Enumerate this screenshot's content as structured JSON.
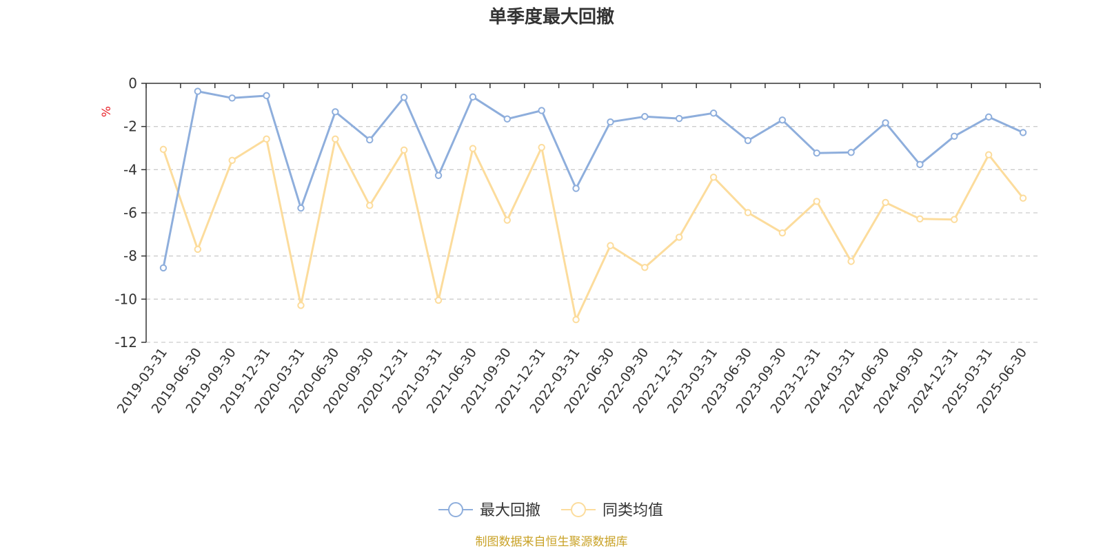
{
  "chart_data": {
    "type": "line",
    "title": "单季度最大回撤",
    "ylabel": "%",
    "ylim": [
      -12,
      0
    ],
    "yticks": [
      0,
      -2,
      -4,
      -6,
      -8,
      -10,
      -12
    ],
    "grid": true,
    "legend_position": "bottom",
    "categories": [
      "2019-03-31",
      "2019-06-30",
      "2019-09-30",
      "2019-12-31",
      "2020-03-31",
      "2020-06-30",
      "2020-09-30",
      "2020-12-31",
      "2021-03-31",
      "2021-06-30",
      "2021-09-30",
      "2021-12-31",
      "2022-03-31",
      "2022-06-30",
      "2022-09-30",
      "2022-12-31",
      "2023-03-31",
      "2023-06-30",
      "2023-09-30",
      "2023-12-31",
      "2024-03-31",
      "2024-06-30",
      "2024-09-30",
      "2024-12-31",
      "2025-03-31",
      "2025-06-30"
    ],
    "series": [
      {
        "name": "最大回撤",
        "color": "#8eaedc",
        "values": [
          -8.55,
          -0.37,
          -0.68,
          -0.57,
          -5.78,
          -1.32,
          -2.62,
          -0.65,
          -4.27,
          -0.63,
          -1.65,
          -1.26,
          -4.87,
          -1.79,
          -1.54,
          -1.63,
          -1.38,
          -2.65,
          -1.7,
          -3.23,
          -3.2,
          -1.83,
          -3.76,
          -2.45,
          -1.56,
          -2.28
        ]
      },
      {
        "name": "同类均值",
        "color": "#fcdc9c",
        "values": [
          -3.06,
          -7.69,
          -3.57,
          -2.58,
          -10.29,
          -2.58,
          -5.66,
          -3.09,
          -10.05,
          -3.02,
          -6.34,
          -2.97,
          -10.95,
          -7.52,
          -8.53,
          -7.13,
          -4.35,
          -5.99,
          -6.93,
          -5.47,
          -8.25,
          -5.52,
          -6.28,
          -6.31,
          -3.31,
          -5.32
        ]
      }
    ]
  },
  "footer": {
    "source_text": "制图数据来自恒生聚源数据库",
    "source_color": "#c9a227"
  },
  "colors": {
    "unit_color": "#e8232a",
    "axis_color": "#333333",
    "grid_color": "#cccccc"
  }
}
